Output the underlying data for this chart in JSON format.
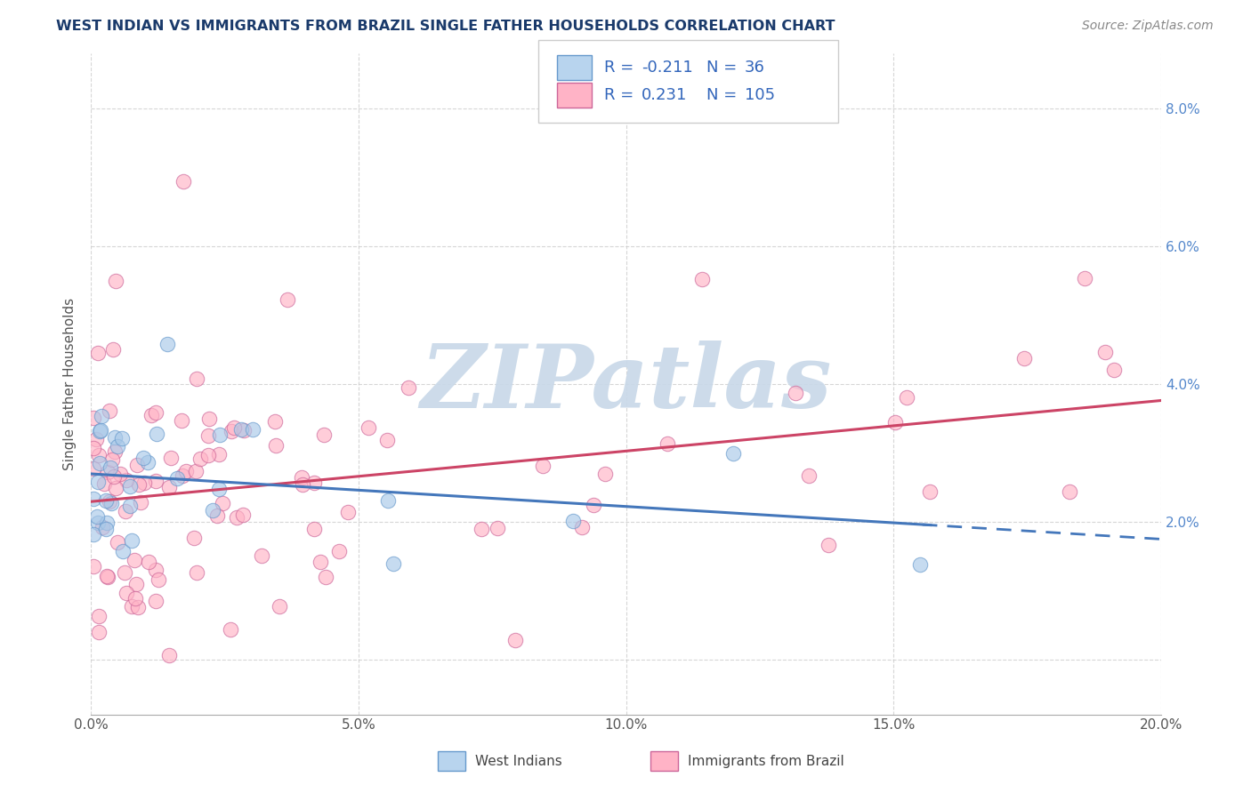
{
  "title": "WEST INDIAN VS IMMIGRANTS FROM BRAZIL SINGLE FATHER HOUSEHOLDS CORRELATION CHART",
  "source": "Source: ZipAtlas.com",
  "ylabel": "Single Father Households",
  "xlim": [
    0.0,
    0.2
  ],
  "ylim": [
    -0.008,
    0.088
  ],
  "yticks": [
    0.0,
    0.02,
    0.04,
    0.06,
    0.08
  ],
  "ytick_labels_left": [
    "",
    "",
    "",
    "",
    ""
  ],
  "ytick_labels_right": [
    "",
    "2.0%",
    "4.0%",
    "6.0%",
    "8.0%"
  ],
  "xticks": [
    0.0,
    0.05,
    0.1,
    0.15,
    0.2
  ],
  "xtick_labels": [
    "0.0%",
    "5.0%",
    "10.0%",
    "15.0%",
    "20.0%"
  ],
  "blue_scatter_color": "#a8c8e8",
  "blue_scatter_edge": "#6699cc",
  "pink_scatter_color": "#ffb3c6",
  "pink_scatter_edge": "#cc6699",
  "blue_line_color": "#4477bb",
  "pink_line_color": "#cc4466",
  "watermark_text": "ZIPatlas",
  "watermark_color": "#c8d8e8",
  "background_color": "#ffffff",
  "grid_color": "#cccccc",
  "title_color": "#1a3a6b",
  "source_color": "#888888",
  "legend_text_color": "#3366bb",
  "right_axis_color": "#5588cc",
  "seed": 42,
  "n_wi": 36,
  "n_br": 105
}
